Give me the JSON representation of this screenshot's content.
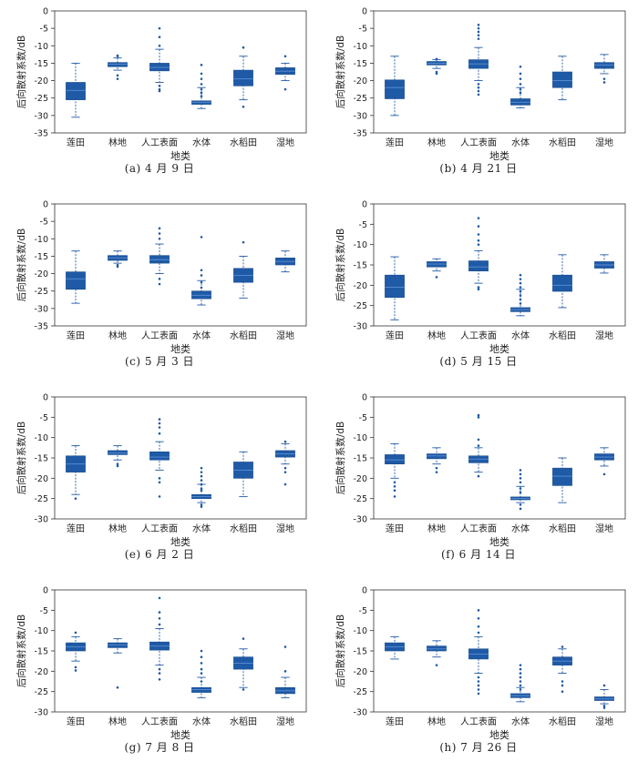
{
  "figure": {
    "box_color": "#1f5aa6",
    "axis_color": "#333333",
    "categories": [
      "莲田",
      "林地",
      "人工表面",
      "水体",
      "水稻田",
      "湿地"
    ],
    "yticks": [
      0,
      -5,
      -10,
      -15,
      -20,
      -25,
      -30
    ]
  },
  "chart_data": [
    {
      "type": "box",
      "caption": "(a) 4 月 9 日",
      "xlabel": "地类",
      "ylabel": "后向散射系数/dB",
      "ylim": [
        -35,
        0
      ],
      "yticks": [
        0,
        -5,
        -10,
        -15,
        -20,
        -25,
        -30,
        -35
      ],
      "categories": [
        "莲田",
        "林地",
        "人工表面",
        "水体",
        "水稻田",
        "湿地"
      ],
      "boxes": [
        {
          "q1": -25.5,
          "median": -22.8,
          "q3": -20.5,
          "low": -30.5,
          "high": -15
        },
        {
          "q1": -16,
          "median": -15.3,
          "q3": -14.8,
          "low": -17,
          "high": -13.5,
          "outliers": [
            -13,
            -12.8,
            -18.5,
            -19.5
          ]
        },
        {
          "q1": -17.2,
          "median": -16.2,
          "q3": -15,
          "low": -20.5,
          "high": -11,
          "outliers": [
            -10,
            -7.5,
            -5,
            -21.5,
            -22.5,
            -23
          ]
        },
        {
          "q1": -26.8,
          "median": -26.2,
          "q3": -25.8,
          "low": -28,
          "high": -22,
          "outliers": [
            -15.5,
            -18,
            -19.5,
            -21,
            -22.5,
            -23.5,
            -24.5
          ]
        },
        {
          "q1": -21.5,
          "median": -19.5,
          "q3": -17,
          "low": -25.5,
          "high": -13,
          "outliers": [
            -10.5,
            -27.5
          ]
        },
        {
          "q1": -18.2,
          "median": -17.3,
          "q3": -16.3,
          "low": -20,
          "high": -15,
          "outliers": [
            -13,
            -22.5
          ]
        }
      ]
    },
    {
      "type": "box",
      "caption": "(b) 4 月 21 日",
      "xlabel": "地类",
      "ylabel": "后向散射系数/dB",
      "ylim": [
        -35,
        0
      ],
      "yticks": [
        0,
        -5,
        -10,
        -15,
        -20,
        -25,
        -30,
        -35
      ],
      "categories": [
        "莲田",
        "林地",
        "人工表面",
        "水体",
        "水稻田",
        "湿地"
      ],
      "boxes": [
        {
          "q1": -25.2,
          "median": -22,
          "q3": -19.8,
          "low": -30,
          "high": -13
        },
        {
          "q1": -15.5,
          "median": -15,
          "q3": -14.5,
          "low": -16.5,
          "high": -14,
          "outliers": [
            -13.8,
            -17.5,
            -18
          ]
        },
        {
          "q1": -16.5,
          "median": -15.2,
          "q3": -14,
          "low": -20,
          "high": -10.5,
          "outliers": [
            -4,
            -5,
            -6,
            -7,
            -8,
            -21,
            -22,
            -23,
            -24
          ]
        },
        {
          "q1": -27,
          "median": -26.2,
          "q3": -25.2,
          "low": -27.8,
          "high": -22,
          "outliers": [
            -16,
            -18,
            -19.5,
            -21,
            -22.5,
            -23.5
          ]
        },
        {
          "q1": -22,
          "median": -20,
          "q3": -17.5,
          "low": -25.5,
          "high": -13
        },
        {
          "q1": -16.5,
          "median": -15.5,
          "q3": -14.8,
          "low": -18,
          "high": -12.5,
          "outliers": [
            -19.5,
            -20.5
          ]
        }
      ]
    },
    {
      "type": "box",
      "caption": "(c) 5 月 3 日",
      "xlabel": "地类",
      "ylabel": "后向散射系数/dB",
      "ylim": [
        -35,
        0
      ],
      "yticks": [
        0,
        -5,
        -10,
        -15,
        -20,
        -25,
        -30,
        -35
      ],
      "categories": [
        "莲田",
        "林地",
        "人工表面",
        "水体",
        "水稻田",
        "湿地"
      ],
      "boxes": [
        {
          "q1": -24.5,
          "median": -21.5,
          "q3": -19.5,
          "low": -28.5,
          "high": -13.5
        },
        {
          "q1": -16.2,
          "median": -15.5,
          "q3": -14.8,
          "low": -17,
          "high": -13.5,
          "outliers": [
            -17.5,
            -18
          ]
        },
        {
          "q1": -17,
          "median": -16,
          "q3": -14.8,
          "low": -20,
          "high": -11.5,
          "outliers": [
            -7,
            -8.5,
            -10,
            -21.5,
            -23
          ]
        },
        {
          "q1": -27.2,
          "median": -26.2,
          "q3": -25,
          "low": -29,
          "high": -22,
          "outliers": [
            -9.5,
            -19,
            -20.5,
            -22.5,
            -24
          ]
        },
        {
          "q1": -22.5,
          "median": -20.5,
          "q3": -18.5,
          "low": -27,
          "high": -15,
          "outliers": [
            -11
          ]
        },
        {
          "q1": -17.5,
          "median": -16.5,
          "q3": -15.5,
          "low": -19.5,
          "high": -13.5
        }
      ]
    },
    {
      "type": "box",
      "caption": "(d) 5 月 15 日",
      "xlabel": "地类",
      "ylabel": "后向散射系数/dB",
      "ylim": [
        -30,
        0
      ],
      "yticks": [
        0,
        -5,
        -10,
        -15,
        -20,
        -25,
        -30
      ],
      "categories": [
        "莲田",
        "林地",
        "人工表面",
        "水体",
        "水稻田",
        "湿地"
      ],
      "boxes": [
        {
          "q1": -23,
          "median": -20.5,
          "q3": -17.5,
          "low": -28.5,
          "high": -13
        },
        {
          "q1": -15.5,
          "median": -14.8,
          "q3": -14.2,
          "low": -16.5,
          "high": -13.5,
          "outliers": [
            -18
          ]
        },
        {
          "q1": -16.5,
          "median": -15.5,
          "q3": -14,
          "low": -19.5,
          "high": -11.5,
          "outliers": [
            -3.5,
            -5.5,
            -7.5,
            -9,
            -10,
            -20.5,
            -21
          ]
        },
        {
          "q1": -26.5,
          "median": -26,
          "q3": -25.5,
          "low": -27.5,
          "high": -21,
          "outliers": [
            -17.5,
            -18.5,
            -19.5,
            -20.5,
            -21.5,
            -22.5,
            -23.5,
            -24.5
          ]
        },
        {
          "q1": -21.5,
          "median": -20,
          "q3": -17.5,
          "low": -25.5,
          "high": -12.5
        },
        {
          "q1": -15.8,
          "median": -15,
          "q3": -14.2,
          "low": -17,
          "high": -12.5
        }
      ]
    },
    {
      "type": "box",
      "caption": "(e) 6 月 2 日",
      "xlabel": "地类",
      "ylabel": "后向散射系数/dB",
      "ylim": [
        -30,
        0
      ],
      "yticks": [
        0,
        -5,
        -10,
        -15,
        -20,
        -25,
        -30
      ],
      "categories": [
        "莲田",
        "林地",
        "人工表面",
        "水体",
        "水稻田",
        "湿地"
      ],
      "boxes": [
        {
          "q1": -18.5,
          "median": -16.5,
          "q3": -14.5,
          "low": -24,
          "high": -12,
          "outliers": [
            -25
          ]
        },
        {
          "q1": -14.2,
          "median": -13.8,
          "q3": -13.2,
          "low": -15.5,
          "high": -12,
          "outliers": [
            -16.5,
            -17
          ]
        },
        {
          "q1": -15.5,
          "median": -14.8,
          "q3": -13.5,
          "low": -18,
          "high": -11,
          "outliers": [
            -5.5,
            -6.5,
            -7.5,
            -9,
            -20,
            -21,
            -24.5
          ]
        },
        {
          "q1": -25,
          "median": -24.5,
          "q3": -24,
          "low": -26,
          "high": -21.5,
          "outliers": [
            -17.5,
            -18.5,
            -19.5,
            -20.5,
            -21.5,
            -22.5,
            -23,
            -26.5,
            -27
          ]
        },
        {
          "q1": -20,
          "median": -18,
          "q3": -16,
          "low": -24.5,
          "high": -13.5
        },
        {
          "q1": -14.8,
          "median": -14,
          "q3": -13.2,
          "low": -16.5,
          "high": -11.5,
          "outliers": [
            -11,
            -17.5,
            -18.5,
            -21.5
          ]
        }
      ]
    },
    {
      "type": "box",
      "caption": "(f) 6 月 14 日",
      "xlabel": "地类",
      "ylabel": "后向散射系数/dB",
      "ylim": [
        -30,
        0
      ],
      "yticks": [
        0,
        -5,
        -10,
        -15,
        -20,
        -25,
        -30
      ],
      "categories": [
        "莲田",
        "林地",
        "人工表面",
        "水体",
        "水稻田",
        "湿地"
      ],
      "boxes": [
        {
          "q1": -16.5,
          "median": -15.5,
          "q3": -14.2,
          "low": -20,
          "high": -11.5,
          "outliers": [
            -21,
            -22,
            -23,
            -24.5
          ]
        },
        {
          "q1": -15.2,
          "median": -14.5,
          "q3": -14,
          "low": -16.5,
          "high": -12.5,
          "outliers": [
            -17.5,
            -18.5
          ]
        },
        {
          "q1": -16.2,
          "median": -15.3,
          "q3": -14.5,
          "low": -18.5,
          "high": -12.5,
          "outliers": [
            -4.5,
            -5,
            -10.5,
            -12,
            -19.5
          ]
        },
        {
          "q1": -25.3,
          "median": -25,
          "q3": -24.6,
          "low": -26,
          "high": -22,
          "outliers": [
            -18,
            -19,
            -20,
            -21,
            -22.5,
            -23.5,
            -26.5,
            -27.5
          ]
        },
        {
          "q1": -21.8,
          "median": -19.5,
          "q3": -17.5,
          "low": -26,
          "high": -15
        },
        {
          "q1": -15.5,
          "median": -14.8,
          "q3": -14,
          "low": -17,
          "high": -12.5,
          "outliers": [
            -19
          ]
        }
      ]
    },
    {
      "type": "box",
      "caption": "(g) 7 月 8 日",
      "xlabel": "地类",
      "ylabel": "后向散射系数/dB",
      "ylim": [
        -30,
        0
      ],
      "yticks": [
        0,
        -5,
        -10,
        -15,
        -20,
        -25,
        -30
      ],
      "categories": [
        "莲田",
        "林地",
        "人工表面",
        "水体",
        "水稻田",
        "湿地"
      ],
      "boxes": [
        {
          "q1": -15,
          "median": -14,
          "q3": -13,
          "low": -17.5,
          "high": -11.5,
          "outliers": [
            -10.5,
            -19,
            -19.8
          ]
        },
        {
          "q1": -14.2,
          "median": -13.5,
          "q3": -13,
          "low": -15.5,
          "high": -12,
          "outliers": [
            -24
          ]
        },
        {
          "q1": -14.8,
          "median": -13.8,
          "q3": -12.8,
          "low": -18.5,
          "high": -9.5,
          "outliers": [
            -2,
            -5.5,
            -7,
            -8.5,
            -19.5,
            -20.5,
            -22
          ]
        },
        {
          "q1": -25.2,
          "median": -24.5,
          "q3": -24,
          "low": -26.5,
          "high": -21.5,
          "outliers": [
            -15,
            -16.5,
            -18,
            -19.5,
            -20.5,
            -22.5
          ]
        },
        {
          "q1": -19.5,
          "median": -18,
          "q3": -16.5,
          "low": -24,
          "high": -14.5,
          "outliers": [
            -12,
            -24.5
          ]
        },
        {
          "q1": -25.5,
          "median": -24.8,
          "q3": -24,
          "low": -26.5,
          "high": -21.5,
          "outliers": [
            -14,
            -20
          ]
        }
      ]
    },
    {
      "type": "box",
      "caption": "(h) 7 月 26 日",
      "xlabel": "地类",
      "ylabel": "后向散射系数/dB",
      "ylim": [
        -30,
        0
      ],
      "yticks": [
        0,
        -5,
        -10,
        -15,
        -20,
        -25,
        -30
      ],
      "categories": [
        "莲田",
        "林地",
        "人工表面",
        "水体",
        "水稻田",
        "湿地"
      ],
      "boxes": [
        {
          "q1": -15,
          "median": -14,
          "q3": -13,
          "low": -17,
          "high": -11.5
        },
        {
          "q1": -15,
          "median": -14.5,
          "q3": -13.8,
          "low": -16.5,
          "high": -12.5,
          "outliers": [
            -18.5
          ]
        },
        {
          "q1": -17,
          "median": -15.8,
          "q3": -14.5,
          "low": -20.5,
          "high": -11.5,
          "outliers": [
            -5,
            -7,
            -9,
            -10.5,
            -21.5,
            -22.5,
            -23.5,
            -24.5,
            -25.5
          ]
        },
        {
          "q1": -26.5,
          "median": -26,
          "q3": -25.5,
          "low": -27.5,
          "high": -24,
          "outliers": [
            -18.5,
            -19.5,
            -20.5,
            -21.5,
            -22.5,
            -23.5,
            -24.5
          ]
        },
        {
          "q1": -18.5,
          "median": -17.5,
          "q3": -16.5,
          "low": -20.5,
          "high": -14.5,
          "outliers": [
            -14,
            -22.5,
            -23.5,
            -25
          ]
        },
        {
          "q1": -27.2,
          "median": -26.8,
          "q3": -26.3,
          "low": -28,
          "high": -24.5,
          "outliers": [
            -23.5,
            -28.5,
            -29
          ]
        }
      ]
    }
  ]
}
